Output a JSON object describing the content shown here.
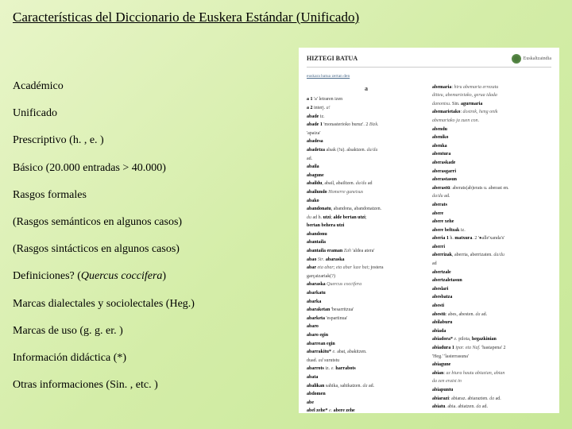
{
  "title": "Características del Diccionario de Euskera Estándar (Unificado)",
  "features": [
    "Académico",
    "Unificado",
    "Prescriptivo (h. , e. )",
    "Básico (20.000 entradas > 40.000)",
    "Rasgos formales",
    "(Rasgos semánticos en algunos casos)",
    "(Rasgos sintácticos en algunos casos)",
    "Definiciones? (<em>Quercus coccifera</em>)",
    "Marcas dialectales y sociolectales (Heg.)",
    "Marcas de uso (g. g. er. )",
    "Información didáctica (*)",
    "Otras informaciones (Sin. , etc. )"
  ],
  "dict": {
    "header_title": "HIZTEGI BATUA",
    "publisher": "Euskaltzaindia",
    "intro_lines": "euskara batua zertan den",
    "letter": "a",
    "col1": [
      "<b>a 1</b> 'a' letraren izen",
      "<b>a 2</b> interj. <i>a!</i>",
      "<b>abade</b> iz.",
      "<b>abade 1</b> 'monasterioko buruz'. 2 <i>Bizk.</i>",
      "'apaiza'",
      "<b>abadesa</b>",
      "<b>abadetza</b> alsak (!u). alsaktzen. <i>da/du</i>",
      "ad.",
      "<b>abaila</b>",
      "<b>abagune</b>",
      "<b>abaildu</b>, abail, abailtzen. <i>da/du</i> ad",
      "<b>abailundo</b> <i>Homerre guneisus</i>",
      "<b>abako</b>",
      "<b>abandonatu</b>, abandona, abandonatzen.",
      "<i>du</i> ad h. <b>utzi</b>; <b>alde bertan utzi</b>;",
      "<b>bertan behera utzi</b>",
      "<b>abandonu</b>",
      "<b>abantaila</b>",
      "<b>abantaila eraman</b> <i>Zah</i> 'aldea atera'",
      "<b>abao</b> <i>Str</i>. <b>abaraska</b>",
      "<b>abar</b> <i>eta abar</i>; <i>eta abar luze bat</i>; jostera",
      "garçaizariak(?)",
      "<b>abaraska</b> <i>Quercus coccifera</i>",
      "<b>abarkatu</b>",
      "<b>abarka</b>",
      "<b>abaraketan</b> 'besarritzua'",
      "<b>abarketa</b> 'espartinua'",
      "<b>abaro</b>",
      "<b>abaro egin</b>",
      "<b>abarrean egin</b>",
      "<b>abarrakitu*</b> <i>e.</i> abat, abakitzen.",
      "duad. <i>ad</i> surutstu",
      "<b>abarrots</b> iz. <i>e.</i> <b>harrabots</b>",
      "<b>abata</b>",
      "<b>abalikan</b> sahika, sahikatzen. <i>da</i> ad.",
      "<b>abdomen</b>",
      "<b>abe</b>",
      "<b>abel zehe*</b> <i>e.</i> <b>abere zehe</b>",
      "<b>abelazreunre</b>"
    ],
    "col2": [
      "<b>abemaria</b>: <i>hiru abemaria errezatu</i>",
      "<i>ditteu, abemarieiako, gerua idada</i>",
      "<i>danontsu</i>. Sin. <b>agurmaria</b>",
      "<b>abemarietako</b>: <i>dostrek, heng onik</i>",
      "<i>abemariako ja zuen con</i>.",
      "<b>abendu</b>",
      "<b>abeniko</b>",
      "<b>abenka</b>",
      "<b>abentura</b>",
      "<b>aberaskade</b>",
      "<b>aberasgarri</b>",
      "<b>aberastasun</b>",
      "<b>aberastü</b>: aberats(ab)erats u. aberast en.",
      "<i>da/du</i> ad.",
      "<b>aberats</b>",
      "<b>abere</b>",
      "<b>abere xehe</b>",
      "<b>abere beltzak</b> iz.",
      "<b>aberia 1</b> h. <b>matxura</b>. 2 '&#x25CF;alle'xanda's'",
      "<b>aberri</b>",
      "<b>aberrizak</b>, aberria, aberrizaten. <i>da/du</i>",
      "ad",
      "<b>abertzale</b>",
      "<b>abertzaletasun</b>",
      "<b>abeslari</b>",
      "<b>abesbatza</b>",
      "<b>abesti</b>",
      "<b>abestü</b>: abes, abesten. <i>da</i> ad.",
      "<b>abilaburu</b>",
      "<b>abiada</b>",
      "<b>abiadora*</b> <i>e.</i> pilota, <b>hegazkinian</b>",
      "<b>abiadura 1</b> <i>ipar.</i> <i>eta Naf.</i> 'hastapena' 2",
      "'Heg.' 'lasterrasuna'",
      "<b>abiagune</b>",
      "<b>abian</b>: <i>az biura hautu abiazian, abian</i>",
      "<i>da zen eraist in</i>",
      "<b>abiapuntu</b>",
      "<b>abiarazi</b>: abiaraz. abiarazten. <i>da</i> ad.",
      "<b>abiatu</b>. abia. abiatzen. <i>da</i> ad.",
      "<b>abiatze</b>"
    ]
  }
}
